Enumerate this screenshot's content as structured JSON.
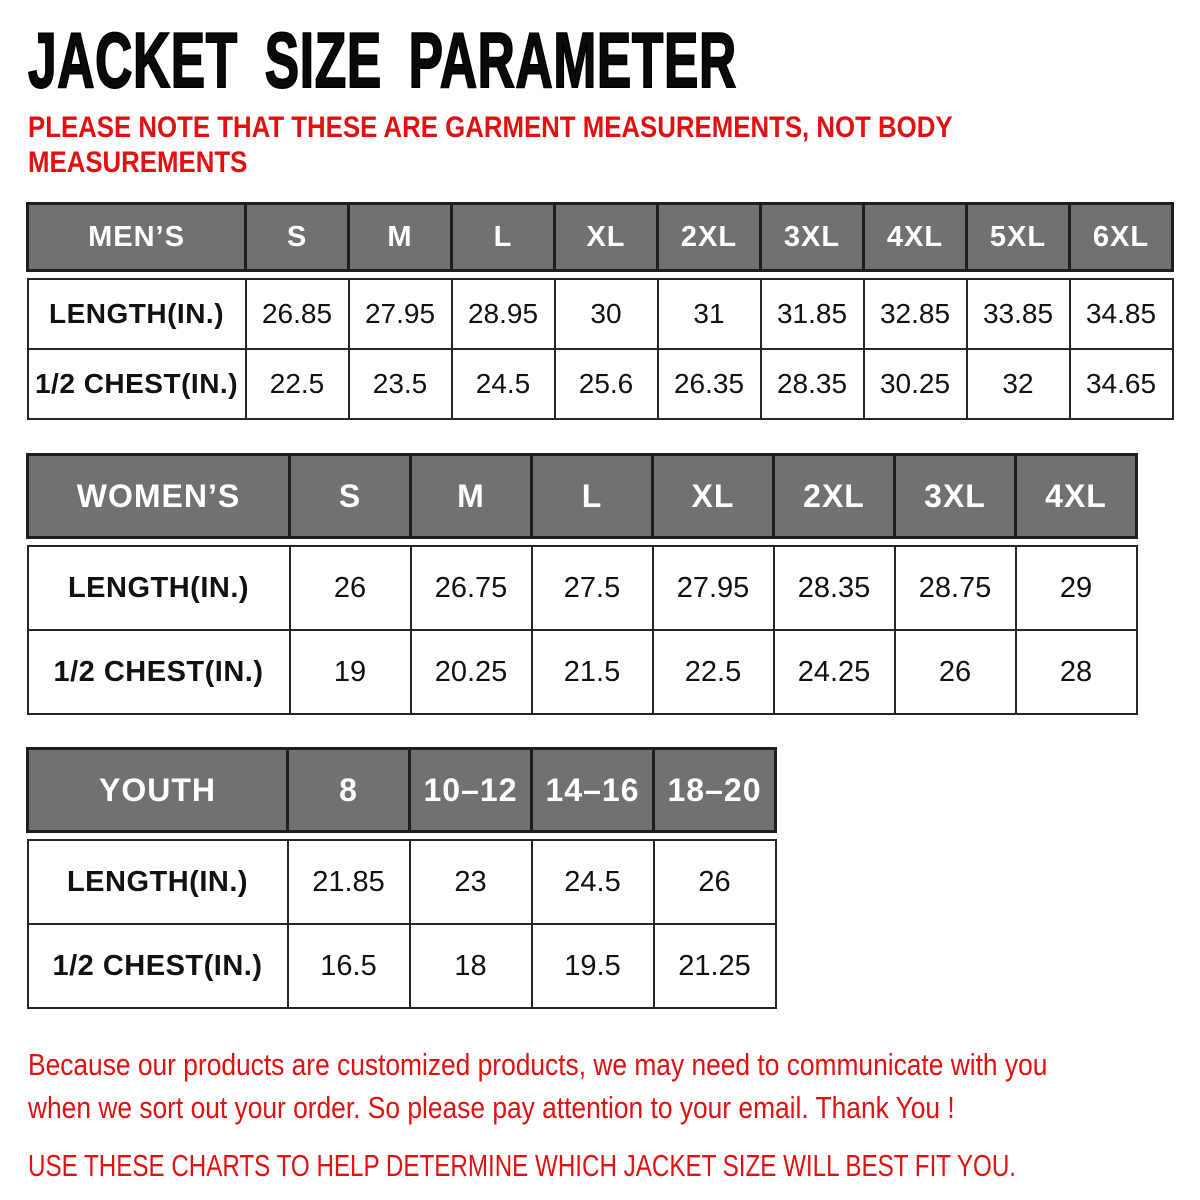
{
  "header": {
    "title": "JACKET SIZE PARAMETER",
    "note_lines": [
      "PLEASE NOTE THAT THESE ARE GARMENT MEASUREMENTS, NOT BODY",
      "MEASUREMENTS"
    ]
  },
  "footer": {
    "paragraph_lines": [
      "Because our products are customized products, we may need to communicate with you",
      "when we sort out your order. So please pay attention to your email. Thank You !"
    ],
    "caps_line": "USE THESE CHARTS TO HELP DETERMINE WHICH JACKET SIZE WILL BEST FIT YOU."
  },
  "colors": {
    "accent_red": "#e21111",
    "header_gray": "#717171",
    "border_dark": "#262626",
    "title_black": "#0a0a0a"
  },
  "chart_data": [
    {
      "type": "table",
      "key": "mens",
      "title": "MEN’S",
      "columns": [
        "S",
        "M",
        "L",
        "XL",
        "2XL",
        "3XL",
        "4XL",
        "5XL",
        "6XL"
      ],
      "rows": [
        {
          "label": "LENGTH(IN.)",
          "values": [
            "26.85",
            "27.95",
            "28.95",
            "30",
            "31",
            "31.85",
            "32.85",
            "33.85",
            "34.85"
          ]
        },
        {
          "label": "1/2 CHEST(IN.)",
          "values": [
            "22.5",
            "23.5",
            "24.5",
            "25.6",
            "26.35",
            "28.35",
            "30.25",
            "32",
            "34.65"
          ]
        }
      ]
    },
    {
      "type": "table",
      "key": "womens",
      "title": "WOMEN’S",
      "columns": [
        "S",
        "M",
        "L",
        "XL",
        "2XL",
        "3XL",
        "4XL"
      ],
      "rows": [
        {
          "label": "LENGTH(IN.)",
          "values": [
            "26",
            "26.75",
            "27.5",
            "27.95",
            "28.35",
            "28.75",
            "29"
          ]
        },
        {
          "label": "1/2 CHEST(IN.)",
          "values": [
            "19",
            "20.25",
            "21.5",
            "22.5",
            "24.25",
            "26",
            "28"
          ]
        }
      ]
    },
    {
      "type": "table",
      "key": "youth",
      "title": "YOUTH",
      "columns": [
        "8",
        "10–12",
        "14–16",
        "18–20"
      ],
      "rows": [
        {
          "label": "LENGTH(IN.)",
          "values": [
            "21.85",
            "23",
            "24.5",
            "26"
          ]
        },
        {
          "label": "1/2 CHEST(IN.)",
          "values": [
            "16.5",
            "18",
            "19.5",
            "21.25"
          ]
        }
      ]
    }
  ]
}
